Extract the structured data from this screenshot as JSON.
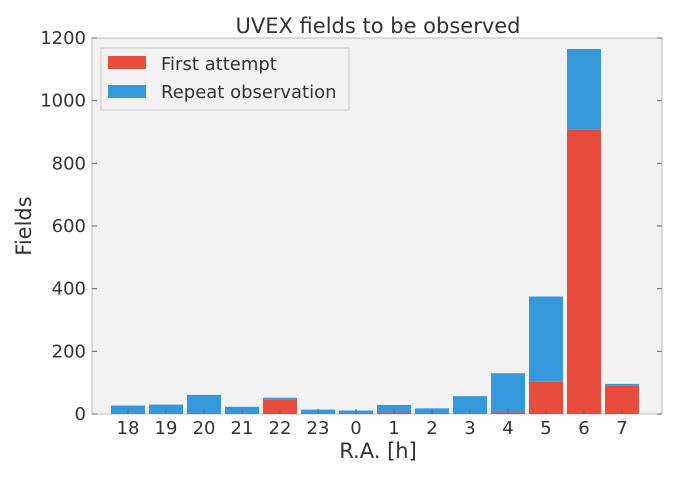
{
  "chart_data": {
    "type": "bar",
    "stacked": true,
    "title": "UVEX fields to be observed",
    "xlabel": "R.A. [h]",
    "ylabel": "Fields",
    "ylim": [
      0,
      1200
    ],
    "yticks": [
      "0",
      "200",
      "400",
      "600",
      "800",
      "1000",
      "1200"
    ],
    "categories": [
      "18",
      "19",
      "20",
      "21",
      "22",
      "23",
      "0",
      "1",
      "2",
      "3",
      "4",
      "5",
      "6",
      "7"
    ],
    "series": [
      {
        "name": "First attempt",
        "color": "#e74c3c",
        "values": [
          0,
          0,
          0,
          0,
          45,
          0,
          0,
          5,
          0,
          0,
          5,
          103,
          907,
          92
        ]
      },
      {
        "name": "Repeat observation",
        "color": "#3498db",
        "values": [
          27,
          30,
          61,
          23,
          7,
          14,
          11,
          24,
          18,
          57,
          125,
          272,
          258,
          4
        ]
      }
    ],
    "grid": false,
    "legend_position": "top-left",
    "plot_background": "#f2f2f2"
  }
}
